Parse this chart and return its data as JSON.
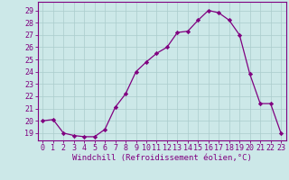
{
  "x": [
    0,
    1,
    2,
    3,
    4,
    5,
    6,
    7,
    8,
    9,
    10,
    11,
    12,
    13,
    14,
    15,
    16,
    17,
    18,
    19,
    20,
    21,
    22,
    23
  ],
  "y": [
    20.0,
    20.1,
    19.0,
    18.8,
    18.7,
    18.7,
    19.3,
    21.1,
    22.2,
    24.0,
    24.8,
    25.5,
    26.0,
    27.2,
    27.3,
    28.2,
    29.0,
    28.8,
    28.2,
    27.0,
    23.8,
    21.4,
    21.4,
    19.0
  ],
  "line_color": "#800080",
  "marker": "D",
  "marker_size": 2.2,
  "background_color": "#cce8e8",
  "grid_color": "#aacccc",
  "xlabel": "Windchill (Refroidissement éolien,°C)",
  "xlabel_fontsize": 6.5,
  "ylabel_ticks": [
    19,
    20,
    21,
    22,
    23,
    24,
    25,
    26,
    27,
    28,
    29
  ],
  "ylim": [
    18.4,
    29.7
  ],
  "xlim": [
    -0.5,
    23.5
  ],
  "tick_fontsize": 6.0,
  "tick_color": "#800080",
  "spine_color": "#800080"
}
